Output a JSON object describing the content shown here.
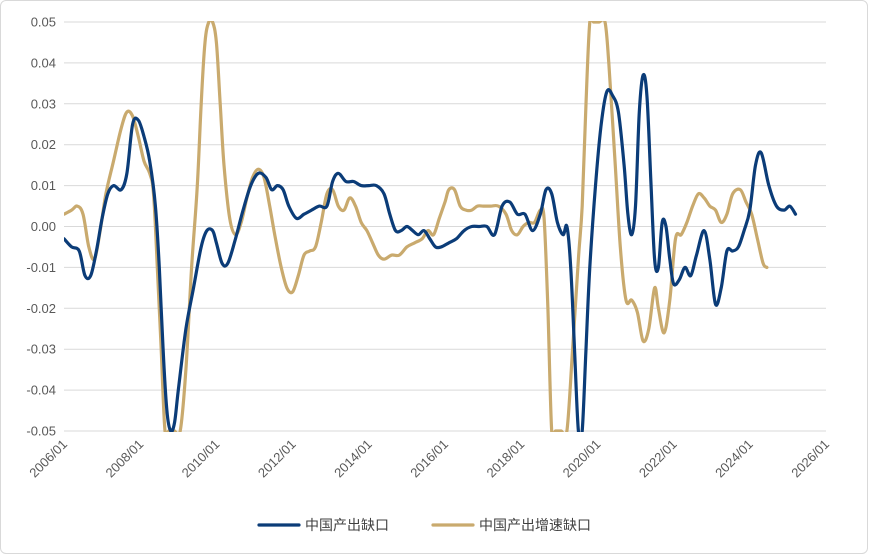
{
  "chart_data": {
    "type": "line",
    "ylim": [
      -0.05,
      0.05
    ],
    "yticks": [
      "0.05",
      "0.04",
      "0.03",
      "0.02",
      "0.01",
      "0.00",
      "-0.01",
      "-0.02",
      "-0.03",
      "-0.04",
      "-0.05"
    ],
    "yticks_values": [
      0.05,
      0.04,
      0.03,
      0.02,
      0.01,
      0.0,
      -0.01,
      -0.02,
      -0.03,
      -0.04,
      -0.05
    ],
    "xlim": [
      2006.0,
      2026.0
    ],
    "xticks": [
      "2006/01",
      "2008/01",
      "2010/01",
      "2012/01",
      "2014/01",
      "2016/01",
      "2018/01",
      "2020/01",
      "2022/01",
      "2024/01",
      "2026/01"
    ],
    "xticks_values": [
      2006,
      2008,
      2010,
      2012,
      2014,
      2016,
      2018,
      2020,
      2022,
      2024,
      2026
    ],
    "grid": true,
    "legend_position": "bottom",
    "series": [
      {
        "name": "中国产出缺口",
        "color": "#0b3c78",
        "points": [
          [
            2006.0,
            -0.003
          ],
          [
            2006.2,
            -0.005
          ],
          [
            2006.4,
            -0.006
          ],
          [
            2006.55,
            -0.012
          ],
          [
            2006.7,
            -0.012
          ],
          [
            2006.85,
            -0.006
          ],
          [
            2007.0,
            0.002
          ],
          [
            2007.15,
            0.008
          ],
          [
            2007.3,
            0.01
          ],
          [
            2007.5,
            0.009
          ],
          [
            2007.65,
            0.013
          ],
          [
            2007.8,
            0.025
          ],
          [
            2007.95,
            0.026
          ],
          [
            2008.1,
            0.022
          ],
          [
            2008.25,
            0.016
          ],
          [
            2008.4,
            0.005
          ],
          [
            2008.5,
            -0.01
          ],
          [
            2008.6,
            -0.03
          ],
          [
            2008.7,
            -0.045
          ],
          [
            2008.8,
            -0.05
          ],
          [
            2008.9,
            -0.048
          ],
          [
            2009.0,
            -0.04
          ],
          [
            2009.2,
            -0.025
          ],
          [
            2009.4,
            -0.015
          ],
          [
            2009.6,
            -0.005
          ],
          [
            2009.75,
            -0.001
          ],
          [
            2009.9,
            -0.001
          ],
          [
            2010.0,
            -0.004
          ],
          [
            2010.15,
            -0.009
          ],
          [
            2010.3,
            -0.009
          ],
          [
            2010.5,
            -0.003
          ],
          [
            2010.7,
            0.004
          ],
          [
            2010.9,
            0.01
          ],
          [
            2011.1,
            0.013
          ],
          [
            2011.3,
            0.012
          ],
          [
            2011.45,
            0.009
          ],
          [
            2011.6,
            0.01
          ],
          [
            2011.75,
            0.009
          ],
          [
            2011.9,
            0.005
          ],
          [
            2012.1,
            0.002
          ],
          [
            2012.3,
            0.003
          ],
          [
            2012.5,
            0.004
          ],
          [
            2012.7,
            0.005
          ],
          [
            2012.9,
            0.005
          ],
          [
            2013.05,
            0.011
          ],
          [
            2013.2,
            0.013
          ],
          [
            2013.4,
            0.011
          ],
          [
            2013.6,
            0.011
          ],
          [
            2013.8,
            0.01
          ],
          [
            2014.0,
            0.01
          ],
          [
            2014.2,
            0.01
          ],
          [
            2014.4,
            0.008
          ],
          [
            2014.55,
            0.003
          ],
          [
            2014.7,
            -0.001
          ],
          [
            2014.85,
            -0.001
          ],
          [
            2015.0,
            0.0
          ],
          [
            2015.15,
            -0.001
          ],
          [
            2015.3,
            -0.002
          ],
          [
            2015.45,
            -0.001
          ],
          [
            2015.6,
            -0.003
          ],
          [
            2015.75,
            -0.005
          ],
          [
            2015.9,
            -0.005
          ],
          [
            2016.1,
            -0.004
          ],
          [
            2016.3,
            -0.003
          ],
          [
            2016.5,
            -0.001
          ],
          [
            2016.7,
            0.0
          ],
          [
            2016.9,
            0.0
          ],
          [
            2017.1,
            0.0
          ],
          [
            2017.3,
            -0.002
          ],
          [
            2017.5,
            0.005
          ],
          [
            2017.7,
            0.006
          ],
          [
            2017.9,
            0.003
          ],
          [
            2018.1,
            0.003
          ],
          [
            2018.3,
            -0.001
          ],
          [
            2018.5,
            0.003
          ],
          [
            2018.65,
            0.009
          ],
          [
            2018.8,
            0.008
          ],
          [
            2018.95,
            0.001
          ],
          [
            2019.1,
            -0.002
          ],
          [
            2019.2,
            0.0
          ],
          [
            2019.3,
            -0.01
          ],
          [
            2019.4,
            -0.03
          ],
          [
            2019.5,
            -0.05
          ],
          [
            2019.6,
            -0.05
          ],
          [
            2019.7,
            -0.03
          ],
          [
            2019.8,
            -0.01
          ],
          [
            2019.95,
            0.01
          ],
          [
            2020.1,
            0.025
          ],
          [
            2020.25,
            0.033
          ],
          [
            2020.4,
            0.032
          ],
          [
            2020.55,
            0.028
          ],
          [
            2020.7,
            0.015
          ],
          [
            2020.8,
            0.003
          ],
          [
            2020.9,
            -0.002
          ],
          [
            2021.0,
            0.005
          ],
          [
            2021.1,
            0.028
          ],
          [
            2021.2,
            0.037
          ],
          [
            2021.3,
            0.032
          ],
          [
            2021.4,
            0.012
          ],
          [
            2021.5,
            -0.008
          ],
          [
            2021.6,
            -0.01
          ],
          [
            2021.7,
            0.001
          ],
          [
            2021.8,
            0.0
          ],
          [
            2021.9,
            -0.008
          ],
          [
            2022.0,
            -0.014
          ],
          [
            2022.15,
            -0.013
          ],
          [
            2022.3,
            -0.01
          ],
          [
            2022.45,
            -0.012
          ],
          [
            2022.6,
            -0.007
          ],
          [
            2022.8,
            -0.001
          ],
          [
            2022.95,
            -0.008
          ],
          [
            2023.1,
            -0.019
          ],
          [
            2023.25,
            -0.015
          ],
          [
            2023.4,
            -0.006
          ],
          [
            2023.55,
            -0.006
          ],
          [
            2023.7,
            -0.005
          ],
          [
            2023.85,
            -0.001
          ],
          [
            2024.0,
            0.004
          ],
          [
            2024.15,
            0.015
          ],
          [
            2024.3,
            0.018
          ],
          [
            2024.5,
            0.01
          ],
          [
            2024.7,
            0.005
          ],
          [
            2024.9,
            0.004
          ],
          [
            2025.05,
            0.005
          ],
          [
            2025.2,
            0.003
          ]
        ]
      },
      {
        "name": "中国产出增速缺口",
        "color": "#c9aa6e",
        "points": [
          [
            2006.0,
            0.003
          ],
          [
            2006.2,
            0.004
          ],
          [
            2006.35,
            0.005
          ],
          [
            2006.5,
            0.003
          ],
          [
            2006.65,
            -0.005
          ],
          [
            2006.8,
            -0.008
          ],
          [
            2006.95,
            -0.001
          ],
          [
            2007.1,
            0.008
          ],
          [
            2007.3,
            0.016
          ],
          [
            2007.5,
            0.024
          ],
          [
            2007.65,
            0.028
          ],
          [
            2007.8,
            0.027
          ],
          [
            2007.95,
            0.022
          ],
          [
            2008.1,
            0.016
          ],
          [
            2008.25,
            0.013
          ],
          [
            2008.35,
            0.008
          ],
          [
            2008.45,
            -0.01
          ],
          [
            2008.55,
            -0.03
          ],
          [
            2008.65,
            -0.05
          ],
          [
            2008.75,
            -0.05
          ],
          [
            2008.9,
            -0.05
          ],
          [
            2009.05,
            -0.05
          ],
          [
            2009.2,
            -0.035
          ],
          [
            2009.35,
            -0.01
          ],
          [
            2009.5,
            0.01
          ],
          [
            2009.6,
            0.03
          ],
          [
            2009.7,
            0.045
          ],
          [
            2009.8,
            0.05
          ],
          [
            2009.9,
            0.05
          ],
          [
            2010.0,
            0.045
          ],
          [
            2010.1,
            0.03
          ],
          [
            2010.2,
            0.015
          ],
          [
            2010.35,
            0.002
          ],
          [
            2010.5,
            -0.002
          ],
          [
            2010.65,
            0.001
          ],
          [
            2010.8,
            0.007
          ],
          [
            2010.95,
            0.012
          ],
          [
            2011.1,
            0.014
          ],
          [
            2011.25,
            0.012
          ],
          [
            2011.4,
            0.005
          ],
          [
            2011.55,
            -0.003
          ],
          [
            2011.7,
            -0.01
          ],
          [
            2011.85,
            -0.015
          ],
          [
            2012.0,
            -0.016
          ],
          [
            2012.15,
            -0.012
          ],
          [
            2012.3,
            -0.007
          ],
          [
            2012.45,
            -0.006
          ],
          [
            2012.6,
            -0.005
          ],
          [
            2012.75,
            0.001
          ],
          [
            2012.9,
            0.008
          ],
          [
            2013.05,
            0.009
          ],
          [
            2013.2,
            0.005
          ],
          [
            2013.35,
            0.004
          ],
          [
            2013.5,
            0.007
          ],
          [
            2013.65,
            0.005
          ],
          [
            2013.8,
            0.001
          ],
          [
            2013.95,
            -0.001
          ],
          [
            2014.1,
            -0.004
          ],
          [
            2014.25,
            -0.007
          ],
          [
            2014.4,
            -0.008
          ],
          [
            2014.6,
            -0.007
          ],
          [
            2014.8,
            -0.007
          ],
          [
            2015.0,
            -0.005
          ],
          [
            2015.2,
            -0.004
          ],
          [
            2015.4,
            -0.003
          ],
          [
            2015.55,
            -0.001
          ],
          [
            2015.7,
            -0.002
          ],
          [
            2015.85,
            0.002
          ],
          [
            2016.0,
            0.006
          ],
          [
            2016.1,
            0.009
          ],
          [
            2016.25,
            0.009
          ],
          [
            2016.4,
            0.005
          ],
          [
            2016.55,
            0.004
          ],
          [
            2016.7,
            0.004
          ],
          [
            2016.85,
            0.005
          ],
          [
            2017.0,
            0.005
          ],
          [
            2017.2,
            0.005
          ],
          [
            2017.4,
            0.005
          ],
          [
            2017.6,
            0.003
          ],
          [
            2017.75,
            -0.001
          ],
          [
            2017.9,
            -0.002
          ],
          [
            2018.05,
            0.0
          ],
          [
            2018.2,
            0.001
          ],
          [
            2018.35,
            0.001
          ],
          [
            2018.5,
            0.004
          ],
          [
            2018.6,
            0.002
          ],
          [
            2018.7,
            -0.02
          ],
          [
            2018.8,
            -0.05
          ],
          [
            2018.9,
            -0.05
          ],
          [
            2019.05,
            -0.05
          ],
          [
            2019.2,
            -0.05
          ],
          [
            2019.35,
            -0.03
          ],
          [
            2019.5,
            -0.008
          ],
          [
            2019.6,
            0.005
          ],
          [
            2019.7,
            0.03
          ],
          [
            2019.8,
            0.05
          ],
          [
            2019.9,
            0.05
          ],
          [
            2020.05,
            0.05
          ],
          [
            2020.2,
            0.05
          ],
          [
            2020.3,
            0.04
          ],
          [
            2020.45,
            0.018
          ],
          [
            2020.6,
            -0.005
          ],
          [
            2020.75,
            -0.018
          ],
          [
            2020.9,
            -0.018
          ],
          [
            2021.05,
            -0.021
          ],
          [
            2021.2,
            -0.028
          ],
          [
            2021.35,
            -0.025
          ],
          [
            2021.5,
            -0.015
          ],
          [
            2021.6,
            -0.02
          ],
          [
            2021.75,
            -0.026
          ],
          [
            2021.9,
            -0.018
          ],
          [
            2022.05,
            -0.003
          ],
          [
            2022.2,
            -0.002
          ],
          [
            2022.35,
            0.001
          ],
          [
            2022.5,
            0.005
          ],
          [
            2022.65,
            0.008
          ],
          [
            2022.8,
            0.007
          ],
          [
            2022.95,
            0.005
          ],
          [
            2023.1,
            0.004
          ],
          [
            2023.25,
            0.001
          ],
          [
            2023.4,
            0.003
          ],
          [
            2023.55,
            0.008
          ],
          [
            2023.75,
            0.009
          ],
          [
            2023.9,
            0.006
          ],
          [
            2024.05,
            0.003
          ],
          [
            2024.2,
            -0.003
          ],
          [
            2024.35,
            -0.009
          ],
          [
            2024.45,
            -0.01
          ]
        ]
      }
    ]
  }
}
